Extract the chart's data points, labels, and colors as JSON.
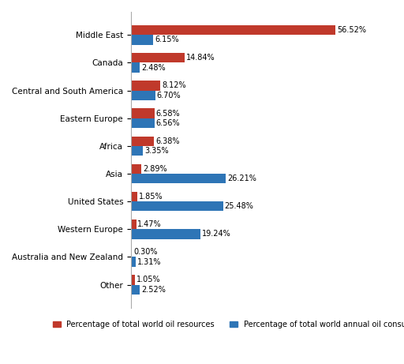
{
  "categories": [
    "Middle East",
    "Canada",
    "Central and South America",
    "Eastern Europe",
    "Africa",
    "Asia",
    "United States",
    "Western Europe",
    "Australia and New Zealand",
    "Other"
  ],
  "resources": [
    56.52,
    14.84,
    8.12,
    6.58,
    6.38,
    2.89,
    1.85,
    1.47,
    0.3,
    1.05
  ],
  "consumption": [
    6.15,
    2.48,
    6.7,
    6.56,
    3.35,
    26.21,
    25.48,
    19.24,
    1.31,
    2.52
  ],
  "resource_color": "#C0392B",
  "consumption_color": "#2E75B6",
  "background_color": "#FFFFFF",
  "legend_resource": "Percentage of total world oil resources",
  "legend_consumption": "Percentage of total world annual oil consumption",
  "bar_height": 0.35,
  "xlim": [
    0,
    62
  ],
  "fontsize_labels": 7.5,
  "fontsize_values": 7,
  "fontsize_legend": 7
}
